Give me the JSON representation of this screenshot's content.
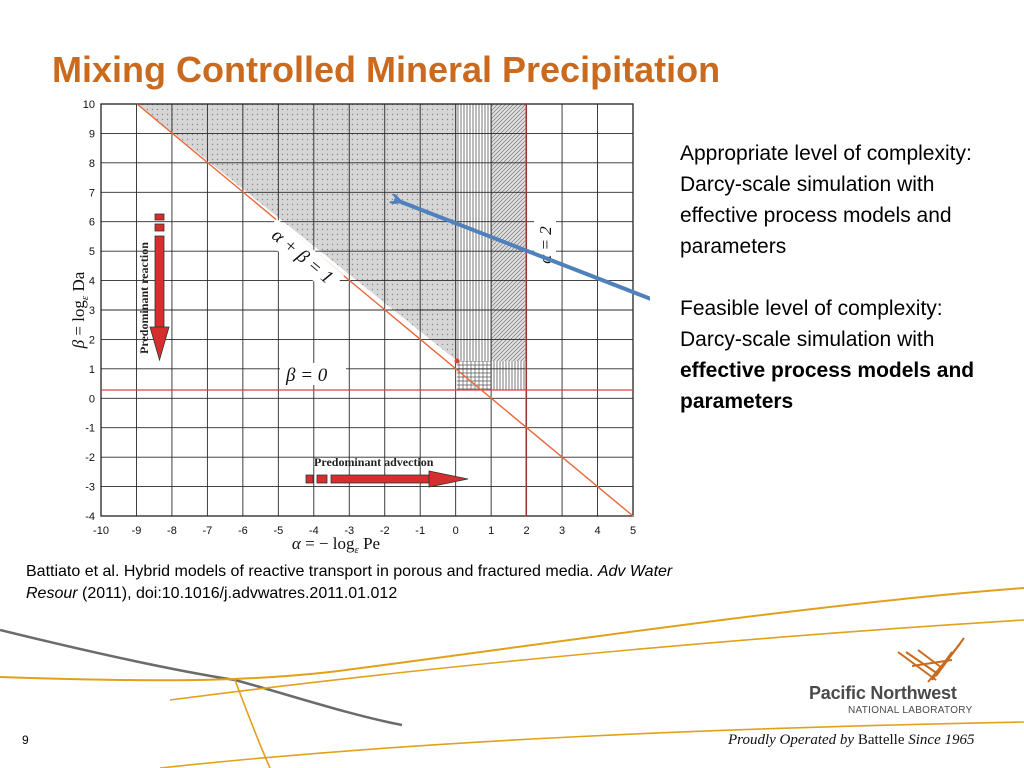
{
  "slide": {
    "title": "Mixing Controlled Mineral Precipitation",
    "title_color": "#C96A1E",
    "page_number": "9"
  },
  "right_text": {
    "para1": "Appropriate level of complexity: Darcy-scale simulation with effective process models and parameters",
    "para2_plain": "Feasible level of complexity: Darcy-scale simulation with ",
    "para2_bold": "effective process models and parameters"
  },
  "citation": {
    "part1": "Battiato et al. Hybrid models of reactive transport in porous and fractured media. ",
    "journal": "Adv Water Resour",
    "part2": " (2011), doi:10.1016/j.advwatres.2011.01.012"
  },
  "chart_data": {
    "type": "diagram",
    "x_ticks": [
      -10,
      -9,
      -8,
      -7,
      -6,
      -5,
      -4,
      -3,
      -2,
      -1,
      0,
      1,
      2,
      3,
      4,
      5
    ],
    "y_ticks": [
      10,
      9,
      8,
      7,
      6,
      5,
      4,
      3,
      2,
      1,
      0,
      -1,
      -2,
      -3,
      -4
    ],
    "xlim": [
      -10,
      5
    ],
    "ylim": [
      -4,
      10
    ],
    "xlabel": "α = − log_ε Pe",
    "ylabel": "β = log_ε Da",
    "lines": [
      {
        "label": "α + β = 1",
        "from": [
          -9,
          10
        ],
        "to": [
          5,
          -4
        ],
        "color": "#E8683A"
      },
      {
        "label": "β = 0",
        "y": 0,
        "color": "#D94040"
      },
      {
        "label": "α = 2",
        "x": 2,
        "color": "#D94040"
      }
    ],
    "shaded_regions": [
      {
        "pattern": "dots",
        "polygon": [
          [
            -9,
            10
          ],
          [
            0,
            10
          ],
          [
            0,
            1
          ]
        ]
      },
      {
        "pattern": "vertical-lines",
        "x_range": [
          0,
          1
        ],
        "y_range": [
          1,
          10
        ]
      },
      {
        "pattern": "diagonal-hatch",
        "x_range": [
          1,
          2
        ],
        "y_range": [
          1,
          10
        ]
      },
      {
        "pattern": "grid-hatch",
        "x_range": [
          0,
          1
        ],
        "y_range": [
          0,
          1
        ]
      },
      {
        "pattern": "vertical-lines",
        "x_range": [
          1,
          2
        ],
        "y_range": [
          0,
          1
        ]
      }
    ],
    "annotations": [
      {
        "text": "Predominant reaction",
        "arrow": "down"
      },
      {
        "text": "Predominant advection",
        "arrow": "right"
      }
    ],
    "pointer_arrow_color": "#4F81BD"
  }
}
